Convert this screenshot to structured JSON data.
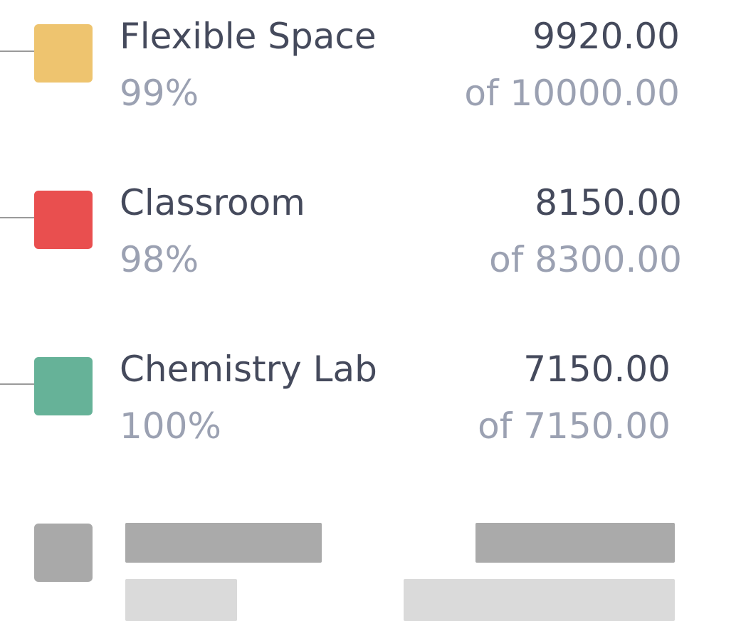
{
  "items": [
    {
      "name": "Flexible Space",
      "percent": "99%",
      "value": "9920.00",
      "total": "of 10000.00",
      "color": "#eec46f"
    },
    {
      "name": "Classroom",
      "percent": "98%",
      "value": "8150.00",
      "total": "of 8300.00",
      "color": "#e94f4f"
    },
    {
      "name": "Chemistry Lab",
      "percent": "100%",
      "value": "7150.00",
      "total": "of 7150.00",
      "color": "#66b298"
    }
  ]
}
